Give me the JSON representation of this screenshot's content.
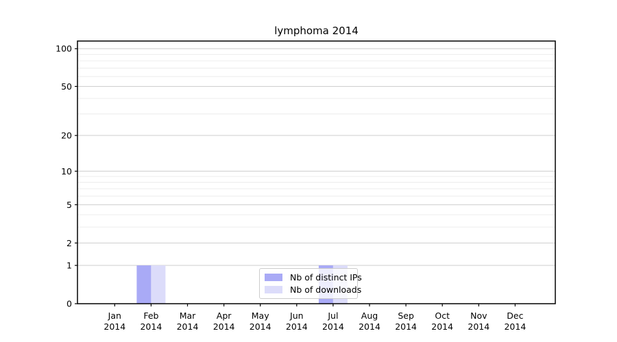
{
  "chart_data": {
    "type": "bar",
    "title": "lymphoma 2014",
    "categories": [
      "Jan",
      "Feb",
      "Mar",
      "Apr",
      "May",
      "Jun",
      "Jul",
      "Aug",
      "Sep",
      "Oct",
      "Nov",
      "Dec"
    ],
    "category_year_line": "2014",
    "series": [
      {
        "name": "Nb of distinct IPs",
        "color": "#a9aaf6",
        "values": [
          0,
          1,
          0,
          0,
          0,
          0,
          1,
          0,
          0,
          0,
          0,
          0
        ]
      },
      {
        "name": "Nb of downloads",
        "color": "#dcdcfa",
        "values": [
          0,
          1,
          0,
          0,
          0,
          0,
          1,
          0,
          0,
          0,
          0,
          0
        ]
      }
    ],
    "xlabel": "",
    "ylabel": "",
    "yscale": "log1p",
    "ylim": [
      0,
      115
    ],
    "yticks": [
      0,
      1,
      2,
      5,
      10,
      20,
      50,
      100
    ],
    "yticks_minor": [
      3,
      4,
      6,
      7,
      8,
      9,
      30,
      40,
      60,
      70,
      80,
      90
    ],
    "grid": "horizontal",
    "legend": {
      "position": "lower center",
      "entries": [
        "Nb of distinct IPs",
        "Nb of downloads"
      ]
    }
  },
  "colors": {
    "bar_distinct_ips": "#a9aaf6",
    "bar_downloads": "#dcdcfa",
    "major_grid": "#cccccc",
    "minor_grid": "#ececec",
    "axis": "#000000"
  }
}
